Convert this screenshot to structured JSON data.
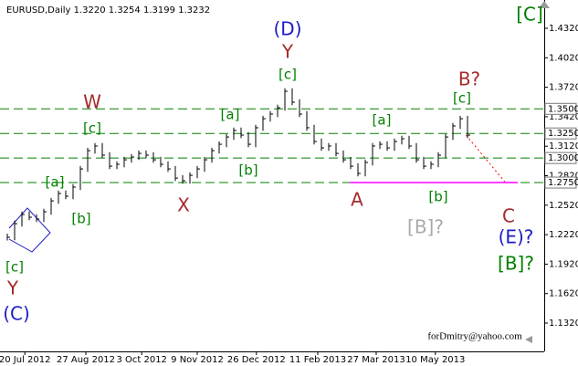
{
  "chart_data": {
    "type": "ohlc",
    "title": "EURUSD,Daily  1.3220 1.3254 1.3199 1.3232",
    "color": "#000000",
    "high": [
      1.223,
      1.2362,
      1.2455,
      1.2455,
      1.2427,
      1.2483,
      1.2594,
      1.2669,
      1.2669,
      1.2734,
      1.2919,
      1.3105,
      1.3152,
      1.3152,
      1.3059,
      1.2966,
      1.3012,
      1.304,
      1.3077,
      1.3077,
      1.3059,
      1.3012,
      1.2966,
      1.2919,
      1.2826,
      1.2854,
      1.2919,
      1.3012,
      1.3105,
      1.317,
      1.3244,
      1.331,
      1.331,
      1.3263,
      1.3338,
      1.343,
      1.3477,
      1.3542,
      1.3709,
      1.3709,
      1.3598,
      1.3477,
      1.3338,
      1.3198,
      1.3152,
      1.3152,
      1.3077,
      1.3012,
      1.2947,
      1.2985,
      1.3152,
      1.317,
      1.317,
      1.3198,
      1.3226,
      1.3226,
      1.3152,
      1.3012,
      1.2966,
      1.3059,
      1.3244,
      1.3356,
      1.343,
      1.343
    ],
    "low": [
      1.216,
      1.2163,
      1.2302,
      1.2367,
      1.2349,
      1.2349,
      1.2423,
      1.2534,
      1.2581,
      1.2581,
      1.2674,
      1.2859,
      1.3045,
      1.2999,
      1.2887,
      1.2887,
      1.2906,
      1.2952,
      1.298,
      1.2999,
      1.2952,
      1.2906,
      1.2859,
      1.2766,
      1.2739,
      1.2739,
      1.2794,
      1.2859,
      1.2952,
      1.3045,
      1.311,
      1.3184,
      1.3203,
      1.311,
      1.311,
      1.3278,
      1.337,
      1.3417,
      1.3482,
      1.3538,
      1.3417,
      1.3278,
      1.3138,
      1.3073,
      1.3073,
      1.3017,
      1.2952,
      1.2887,
      1.2813,
      1.2813,
      1.2925,
      1.3092,
      1.3073,
      1.3073,
      1.3138,
      1.3092,
      1.2952,
      1.2887,
      1.2887,
      1.2906,
      1.2999,
      1.3184,
      1.3296,
      1.3203
    ],
    "close": [
      1.2193,
      1.2332,
      1.2425,
      1.2397,
      1.2379,
      1.2453,
      1.2564,
      1.2639,
      1.2611,
      1.2704,
      1.2889,
      1.3075,
      1.3122,
      1.3029,
      1.2917,
      1.2936,
      1.2982,
      1.301,
      1.3047,
      1.3029,
      1.2982,
      1.2936,
      1.2889,
      1.2796,
      1.2769,
      1.2824,
      1.2889,
      1.2982,
      1.3075,
      1.314,
      1.3214,
      1.328,
      1.3233,
      1.314,
      1.3308,
      1.34,
      1.3447,
      1.3512,
      1.3679,
      1.3568,
      1.3447,
      1.3308,
      1.3168,
      1.3103,
      1.3122,
      1.3047,
      1.2982,
      1.2917,
      1.2843,
      1.2955,
      1.3122,
      1.314,
      1.3103,
      1.3168,
      1.3196,
      1.3122,
      1.2982,
      1.2917,
      1.2936,
      1.3029,
      1.3214,
      1.3326,
      1.34,
      1.3233
    ],
    "xlim": [
      -1,
      73.5
    ],
    "xticks": [
      {
        "value": 2.4,
        "label": "20 Jul 2012"
      },
      {
        "value": 10.75,
        "label": "27 Aug 2012"
      },
      {
        "value": 18.4,
        "label": "3 Oct 2012"
      },
      {
        "value": 26,
        "label": "9 Nov 2012"
      },
      {
        "value": 34.1,
        "label": "26 Dec 2012"
      },
      {
        "value": 42.5,
        "label": "11 Feb 2013"
      },
      {
        "value": 50.5,
        "label": "27 Mar 2013"
      },
      {
        "value": 58.6,
        "label": "10 May 2013"
      }
    ],
    "ylim": [
      1.1032,
      1.4608
    ],
    "yticks": [
      {
        "value": 1.432,
        "label": "1.4320"
      },
      {
        "value": 1.402,
        "label": "1.4020"
      },
      {
        "value": 1.372,
        "label": "1.3720"
      },
      {
        "value": 1.342,
        "label": "1.3420"
      },
      {
        "value": 1.312,
        "label": "1.3120"
      },
      {
        "value": 1.282,
        "label": "1.2820"
      },
      {
        "value": 1.252,
        "label": "1.2520"
      },
      {
        "value": 1.222,
        "label": "1.2220"
      },
      {
        "value": 1.192,
        "label": "1.1920"
      },
      {
        "value": 1.162,
        "label": "1.1620"
      },
      {
        "value": 1.132,
        "label": "1.1320"
      }
    ],
    "grid": false,
    "level_color": "#008000",
    "levels": [
      {
        "value": 1.35,
        "label": "1.3500"
      },
      {
        "value": 1.325,
        "label": "1.3250"
      },
      {
        "value": 1.3,
        "label": "1.3000"
      },
      {
        "value": 1.275,
        "label": "1.2750"
      }
    ],
    "support_line": {
      "x": [
        46.9,
        69.9
      ],
      "values": [
        1.275,
        1.275
      ],
      "color": "#ff00ff"
    },
    "projection": {
      "x": [
        62.8,
        68.1
      ],
      "values": [
        1.3233,
        1.2758
      ],
      "color": "#ff0000"
    },
    "annotations": [
      {
        "text": "[C]",
        "color": "#008000"
      },
      {
        "text": "(D)",
        "color": "#1c1cc8"
      },
      {
        "text": "Y",
        "color": "#a52a2a"
      },
      {
        "text": "[c]",
        "color": "#008000"
      },
      {
        "text": "W",
        "color": "#a52a2a"
      },
      {
        "text": "[c]",
        "color": "#008000"
      },
      {
        "text": "[a]",
        "color": "#008000"
      },
      {
        "text": "[b]",
        "color": "#008000"
      },
      {
        "text": "[a]",
        "color": "#008000"
      },
      {
        "text": "[b]",
        "color": "#008000"
      },
      {
        "text": "X",
        "color": "#a52a2a"
      },
      {
        "text": "[a]",
        "color": "#008000"
      },
      {
        "text": "B?",
        "color": "#a52a2a"
      },
      {
        "text": "[c]",
        "color": "#008000"
      },
      {
        "text": "A",
        "color": "#a52a2a"
      },
      {
        "text": "[b]",
        "color": "#008000"
      },
      {
        "text": "[B]?",
        "color": "#a9a9a9"
      },
      {
        "text": "C",
        "color": "#a52a2a"
      },
      {
        "text": "(E)?",
        "color": "#1c1cc8"
      },
      {
        "text": "[B]?",
        "color": "#008000"
      },
      {
        "text": "[c]",
        "color": "#008000"
      },
      {
        "text": "Y",
        "color": "#a52a2a"
      },
      {
        "text": "(C)",
        "color": "#1c1cc8"
      }
    ],
    "watermark": "forDmitry@yahoo.com"
  }
}
